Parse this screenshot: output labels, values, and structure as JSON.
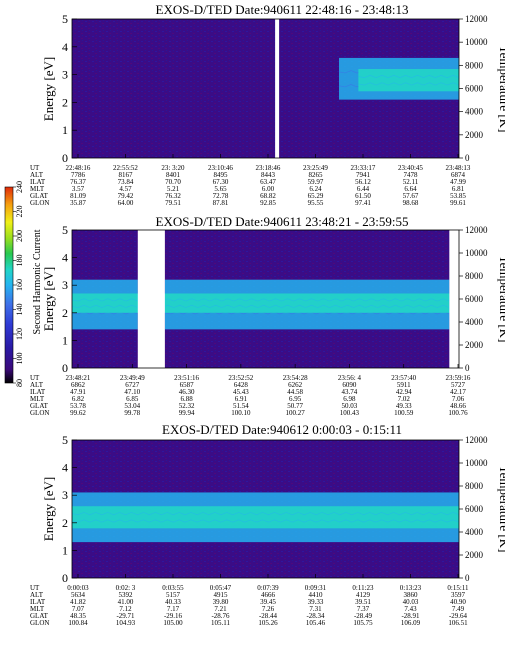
{
  "colorbar": {
    "label": "Second Harmonic Current",
    "ticks": [
      "80",
      "100",
      "120",
      "140",
      "160",
      "180",
      "200",
      "220",
      "240"
    ],
    "colors": [
      "#000000",
      "#3b0a7a",
      "#2a1aa6",
      "#2f3bd4",
      "#3f6fe8",
      "#25b4f0",
      "#22d6c6",
      "#28c850",
      "#9be01e",
      "#f0f018",
      "#f5a010",
      "#e02a0a"
    ]
  },
  "chart_data": [
    {
      "type": "heatmap",
      "title": "EXOS-D/TED   Date:940611  22:48:16 - 23:48:13",
      "ylabel": "Energy [eV]",
      "ylabel_right": "Temperature [K]",
      "ylim": [
        0,
        5
      ],
      "ylim_right": [
        0,
        12000
      ],
      "yticks": [
        "0",
        "1",
        "2",
        "3",
        "4",
        "5"
      ],
      "yticks_right": [
        "0",
        "2000",
        "4000",
        "6000",
        "8000",
        "10000",
        "12000"
      ],
      "data_gaps": [
        0.53
      ],
      "bands": [
        {
          "x_start": 0.69,
          "x_end": 1.0,
          "energy_low": 2.1,
          "energy_high": 3.6,
          "level": 5
        },
        {
          "x_start": 0.74,
          "x_end": 1.0,
          "energy_low": 2.4,
          "energy_high": 3.2,
          "level": 6
        }
      ],
      "row_labels": [
        "UT",
        "ALT",
        "ILAT",
        "MLT",
        "GLAT",
        "GLON"
      ],
      "columns": [
        [
          "22:48:16",
          "7786",
          "76.37",
          "3.57",
          "81.09",
          "35.87"
        ],
        [
          "22:55:52",
          "8167",
          "73.84",
          "4.57",
          "79.42",
          "64.00"
        ],
        [
          "23: 3:20",
          "8401",
          "70.70",
          "5.21",
          "76.32",
          "79.51"
        ],
        [
          "23:10:46",
          "8495",
          "67.30",
          "5.65",
          "72.78",
          "87.81"
        ],
        [
          "23:18:46",
          "8443",
          "63.47",
          "6.00",
          "68.82",
          "92.85"
        ],
        [
          "23:25:49",
          "8265",
          "59.97",
          "6.24",
          "65.29",
          "95.55"
        ],
        [
          "23:33:17",
          "7941",
          "56.12",
          "6.44",
          "61.50",
          "97.41"
        ],
        [
          "23:40:45",
          "7478",
          "52.11",
          "6.64",
          "57.67",
          "98.68"
        ],
        [
          "23:48:13",
          "6874",
          "47.99",
          "6.81",
          "53.85",
          "99.61"
        ]
      ]
    },
    {
      "type": "heatmap",
      "title": "EXOS-D/TED   Date:940611  23:48:21 - 23:59:55",
      "ylabel": "Energy [eV]",
      "ylabel_right": "Temperature [K]",
      "ylim": [
        0,
        5
      ],
      "ylim_right": [
        0,
        12000
      ],
      "yticks": [
        "0",
        "1",
        "2",
        "3",
        "4",
        "5"
      ],
      "yticks_right": [
        "0",
        "2000",
        "4000",
        "6000",
        "8000",
        "10000",
        "12000"
      ],
      "data_gaps_wide": [
        [
          0.17,
          0.24
        ],
        [
          0.975,
          1.0
        ]
      ],
      "bands": [
        {
          "x_start": 0.0,
          "x_end": 0.17,
          "energy_low": 1.4,
          "energy_high": 3.2,
          "level": 5
        },
        {
          "x_start": 0.24,
          "x_end": 0.975,
          "energy_low": 1.4,
          "energy_high": 3.2,
          "level": 5
        },
        {
          "x_start": 0.0,
          "x_end": 0.975,
          "energy_low": 2.0,
          "energy_high": 2.7,
          "level": 6
        }
      ],
      "row_labels": [
        "UT",
        "ALT",
        "ILAT",
        "MLT",
        "GLAT",
        "GLON"
      ],
      "columns": [
        [
          "23:48:21",
          "6862",
          "47.91",
          "6.82",
          "53.78",
          "99.62"
        ],
        [
          "23:49:49",
          "6727",
          "47.10",
          "6.85",
          "53.04",
          "99.78"
        ],
        [
          "23:51:16",
          "6587",
          "46.30",
          "6.88",
          "52.32",
          "99.94"
        ],
        [
          "23:52:52",
          "6428",
          "45.43",
          "6.91",
          "51.54",
          "100.10"
        ],
        [
          "23:54:28",
          "6262",
          "44.58",
          "6.95",
          "50.77",
          "100.27"
        ],
        [
          "23:56: 4",
          "6090",
          "43.74",
          "6.98",
          "50.03",
          "100.43"
        ],
        [
          "23:57:40",
          "5911",
          "42.94",
          "7.02",
          "49.33",
          "100.59"
        ],
        [
          "23:59:16",
          "5727",
          "42.17",
          "7.06",
          "48.66",
          "100.76"
        ]
      ]
    },
    {
      "type": "heatmap",
      "title": "EXOS-D/TED   Date:940612  0:00:03 - 0:15:11",
      "ylabel": "Energy [eV]",
      "ylabel_right": "Temperature [K]",
      "ylim": [
        0,
        5
      ],
      "ylim_right": [
        0,
        12000
      ],
      "yticks": [
        "0",
        "1",
        "2",
        "3",
        "4",
        "5"
      ],
      "yticks_right": [
        "0",
        "2000",
        "4000",
        "6000",
        "8000",
        "10000",
        "12000"
      ],
      "bands": [
        {
          "x_start": 0.0,
          "x_end": 1.0,
          "energy_low": 1.3,
          "energy_high": 3.1,
          "level": 5
        },
        {
          "x_start": 0.0,
          "x_end": 1.0,
          "energy_low": 1.8,
          "energy_high": 2.6,
          "level": 6
        }
      ],
      "row_labels": [
        "UT",
        "ALT",
        "ILAT",
        "MLT",
        "GLAT",
        "GLON"
      ],
      "columns": [
        [
          "0:00:03",
          "5634",
          "41.82",
          "7.07",
          "48.35",
          "100.84"
        ],
        [
          "0:02: 3",
          "5392",
          "41.00",
          "7.12",
          "-29.71",
          "104.93"
        ],
        [
          "0:03:55",
          "5157",
          "40.33",
          "7.17",
          "-29.16",
          "105.00"
        ],
        [
          "0:05:47",
          "4915",
          "39.80",
          "7.21",
          "-28.76",
          "105.11"
        ],
        [
          "0:07:39",
          "4666",
          "39.45",
          "7.26",
          "-28.44",
          "105.26"
        ],
        [
          "0:09:31",
          "4410",
          "39.33",
          "7.31",
          "-28.34",
          "105.46"
        ],
        [
          "0:11:23",
          "4129",
          "39.51",
          "7.37",
          "-28.49",
          "105.75"
        ],
        [
          "0:13:23",
          "3860",
          "40.03",
          "7.43",
          "-28.91",
          "106.09"
        ],
        [
          "0:15:11",
          "3597",
          "40.90",
          "7.49",
          "-29.64",
          "106.51"
        ]
      ]
    }
  ]
}
